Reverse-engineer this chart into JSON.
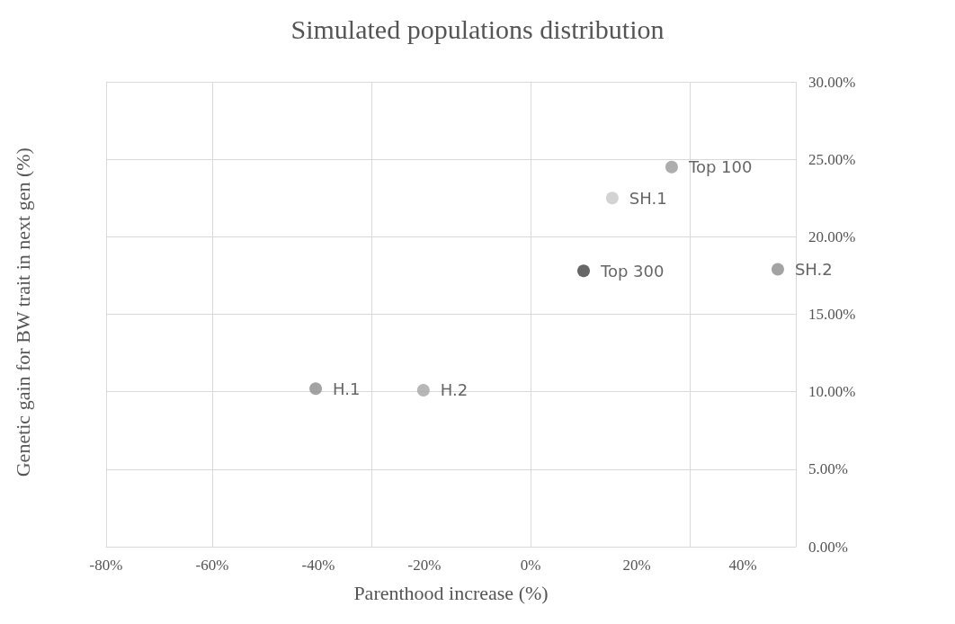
{
  "chart_data": {
    "type": "scatter",
    "title": "Simulated populations distribution",
    "xlabel": "Parenthood increase (%)",
    "ylabel": "Genetic gain for BW trait in next gen (%)",
    "series": [
      {
        "name": "H.1",
        "color": "#8c8c8c",
        "x": [
          -40.5
        ],
        "values": [
          10.2
        ]
      },
      {
        "name": "H.2",
        "color": "#a5a5a5",
        "x": [
          -20.2
        ],
        "values": [
          10.1
        ]
      },
      {
        "name": "Top 300",
        "color": "#404040",
        "x": [
          10
        ],
        "values": [
          17.8
        ]
      },
      {
        "name": "SH.1",
        "color": "#c8c8c8",
        "x": [
          15.4
        ],
        "values": [
          22.5
        ]
      },
      {
        "name": "Top 100",
        "color": "#999999",
        "x": [
          26.6
        ],
        "values": [
          24.5
        ]
      },
      {
        "name": "SH.2",
        "color": "#8c8c8c",
        "x": [
          46.6
        ],
        "values": [
          17.9
        ]
      }
    ],
    "xlim": [
      -80,
      50
    ],
    "xticks": [
      {
        "value": -80,
        "label": "-80%"
      },
      {
        "value": -60,
        "label": "-60%"
      },
      {
        "value": -40,
        "label": "-40%"
      },
      {
        "value": -20,
        "label": "-20%"
      },
      {
        "value": 0,
        "label": "0%"
      },
      {
        "value": 20,
        "label": "20%"
      },
      {
        "value": 40,
        "label": "40%"
      }
    ],
    "ylim": [
      0,
      30
    ],
    "yticks": [
      {
        "value": 0,
        "label": "0.00%"
      },
      {
        "value": 5,
        "label": "5.00%"
      },
      {
        "value": 10,
        "label": "10.00%"
      },
      {
        "value": 15,
        "label": "15.00%"
      },
      {
        "value": 20,
        "label": "20.00%"
      },
      {
        "value": 25,
        "label": "25.00%"
      },
      {
        "value": 30,
        "label": "30.00%"
      }
    ],
    "grid": true,
    "legend": false,
    "marker": "circle"
  }
}
